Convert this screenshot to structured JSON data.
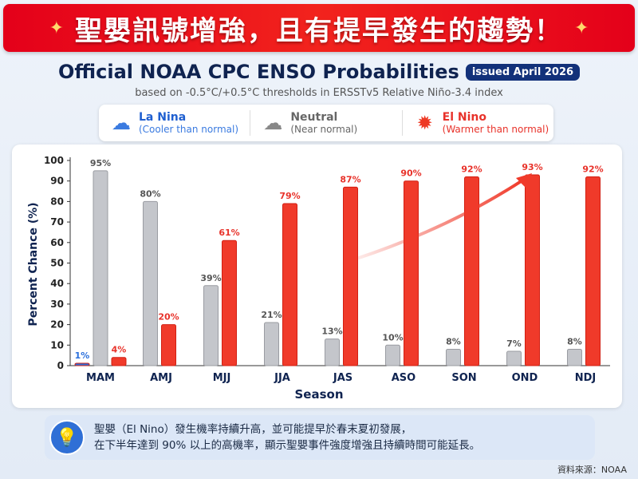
{
  "banner": {
    "title": "聖嬰訊號增強，且有提早發生的趨勢！"
  },
  "header": {
    "title": "Official NOAA CPC ENSO Probabilities",
    "badge": "issued April 2026",
    "subtitle": "based on -0.5°C/+0.5°C thresholds in ERSSTv5 Relative Niño-3.4 index"
  },
  "legend": [
    {
      "name": "La Nina",
      "desc": "(Cooler than normal)",
      "color": "#1f5fd0",
      "icon": "rain-cloud-icon"
    },
    {
      "name": "Neutral",
      "desc": "(Near normal)",
      "color": "#666666",
      "icon": "fog-cloud-icon"
    },
    {
      "name": "El Nino",
      "desc": "(Warmer than normal)",
      "color": "#e8322a",
      "icon": "sun-icon"
    }
  ],
  "chart_data": {
    "type": "bar",
    "xlabel": "Season",
    "ylabel": "Percent Chance (%)",
    "ylim": [
      0,
      100
    ],
    "yticks": [
      0,
      10,
      20,
      30,
      40,
      50,
      60,
      70,
      80,
      90,
      100
    ],
    "categories": [
      "MAM",
      "AMJ",
      "MJJ",
      "JJA",
      "JAS",
      "ASO",
      "SON",
      "OND",
      "NDJ"
    ],
    "series": [
      {
        "name": "La Nina",
        "color": "#2a6fdc",
        "values": [
          1,
          null,
          null,
          null,
          null,
          null,
          null,
          null,
          null
        ]
      },
      {
        "name": "Neutral",
        "color": "#c4c6cb",
        "values": [
          95,
          80,
          39,
          21,
          13,
          10,
          8,
          7,
          8
        ]
      },
      {
        "name": "El Nino",
        "color": "#f03a2a",
        "values": [
          4,
          20,
          61,
          79,
          87,
          90,
          92,
          93,
          92
        ]
      }
    ],
    "grid": false,
    "annotation": "trend arrow rising toward OND"
  },
  "note": {
    "line1": "聖嬰（El Nino）發生機率持續升高，並可能提早於春末夏初發展，",
    "line2": "在下半年達到 90% 以上的高機率，顯示聖嬰事件強度增強且持續時間可能延長。"
  },
  "source": "資料來源：NOAA"
}
